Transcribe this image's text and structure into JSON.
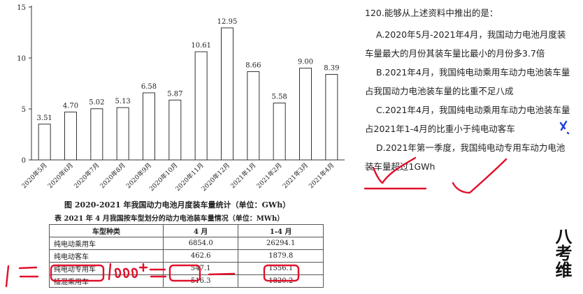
{
  "chart_data": {
    "type": "bar",
    "categories": [
      "2020年5月",
      "2020年6月",
      "2020年7月",
      "2020年8月",
      "2020年9月",
      "2020年10月",
      "2020年11月",
      "2020年12月",
      "2021年1月",
      "2021年2月",
      "2021年3月",
      "2021年4月"
    ],
    "values": [
      3.51,
      4.7,
      5.02,
      5.13,
      6.58,
      5.87,
      10.61,
      12.95,
      8.66,
      5.58,
      9.0,
      8.39
    ],
    "value_labels": [
      "3.51",
      "4.70",
      "5.02",
      "5.13",
      "6.58",
      "5.87",
      "10.61",
      "12.95",
      "8.66",
      "5.58",
      "9.00",
      "8.39"
    ],
    "yticks": [
      "0",
      "5",
      "10",
      "15"
    ],
    "ylim": [
      0,
      15
    ],
    "grid": false,
    "title": "图  2020-2021 年我国动力电池月度装车量统计（单位：GWh）",
    "bar_color": "#ffffff",
    "bar_stroke": "#333333"
  },
  "table": {
    "title": "表  2021 年 4 月我国按车型划分的动力电池装车量情况（单位：MWh）",
    "headers": [
      "车型种类",
      "4 月",
      "1-4 月"
    ],
    "rows": [
      {
        "type": "纯电动乘用车",
        "apr": "6854.0",
        "jan_apr": "26294.1"
      },
      {
        "type": "纯电动客车",
        "apr": "462.6",
        "jan_apr": "1879.8"
      },
      {
        "type": "纯电动专用车",
        "apr": "547.1",
        "jan_apr": "1556.1"
      },
      {
        "type": "插混乘用车",
        "apr": "516.3",
        "jan_apr": "1820.2"
      }
    ]
  },
  "question": {
    "title": "120.能够从上述资料中推出的是：",
    "options": [
      {
        "line1": "A.2020年5月-2021年4月，我国动力电池月度装",
        "line2": "车量最大的月份其装车量比最小的月份多3.7倍"
      },
      {
        "line1": "B.2021年4月，我国纯电动乘用车动力电池装车量",
        "line2": "占我国动力电池装车量的比重不足八成"
      },
      {
        "line1": "C.2021年4月，我国纯电动乘用车动力电池装车量",
        "line2": "占2021年1-4月的比重小于纯电动客车"
      },
      {
        "line1": "D.2021年第一季度，我国纯电动专用车动力电池",
        "line2": "装车量超过1GWh"
      }
    ]
  },
  "logo": {
    "text": "八考维"
  },
  "ink_colors": {
    "red": "#e0102a",
    "blue": "#1a3fd9"
  }
}
